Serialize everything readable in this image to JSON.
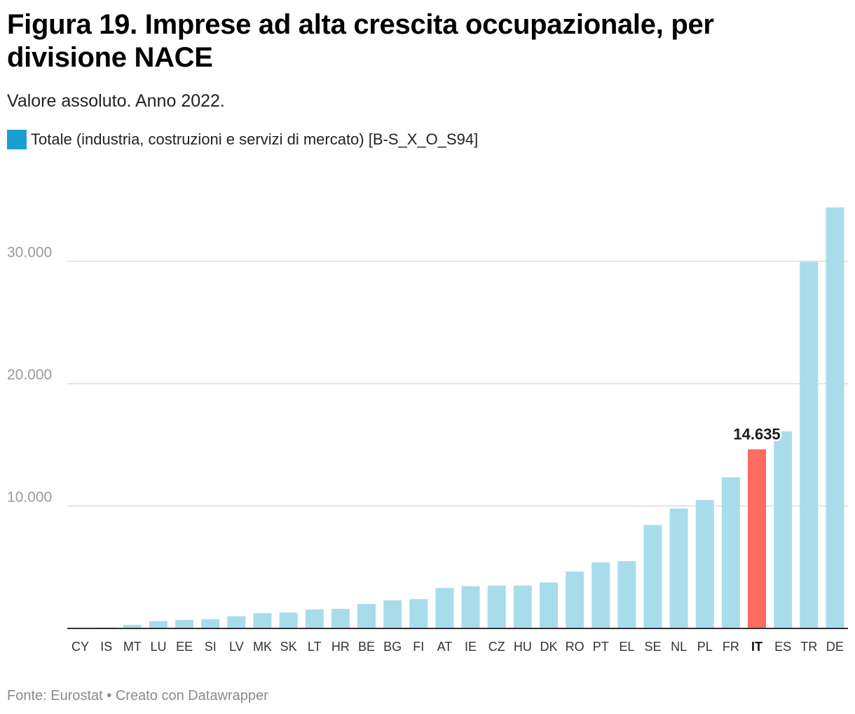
{
  "title": "Figura 19. Imprese ad alta crescita occupazionale, per divisione NACE",
  "subtitle": "Valore assoluto. Anno 2022.",
  "legend": {
    "label": "Totale (industria, costruzioni e servizi di mercato) [B-S_X_O_S94]",
    "color": "#1aa0d0"
  },
  "footer": "Fonte: Eurostat • Creato con Datawrapper",
  "colors": {
    "bar": "#a9dceb",
    "highlight": "#ff6b61",
    "grid": "#dddddd",
    "axis": "#333333"
  },
  "chart_data": {
    "type": "bar",
    "title": "Figura 19. Imprese ad alta crescita occupazionale, per divisione NACE",
    "xlabel": "",
    "ylabel": "",
    "ylim": [
      0,
      34500
    ],
    "yticks": [
      10000,
      20000,
      30000
    ],
    "ytick_labels": [
      "10.000",
      "20.000",
      "30.000"
    ],
    "grid": true,
    "categories": [
      "CY",
      "IS",
      "MT",
      "LU",
      "EE",
      "SI",
      "LV",
      "MK",
      "SK",
      "LT",
      "HR",
      "BE",
      "BG",
      "FI",
      "AT",
      "IE",
      "CZ",
      "HU",
      "DK",
      "RO",
      "PT",
      "EL",
      "SE",
      "NL",
      "PL",
      "FR",
      "IT",
      "ES",
      "TR",
      "DE"
    ],
    "values": [
      30,
      80,
      300,
      600,
      700,
      750,
      1000,
      1250,
      1300,
      1550,
      1600,
      2000,
      2300,
      2400,
      3300,
      3450,
      3500,
      3500,
      3750,
      4650,
      5400,
      5500,
      8450,
      9800,
      10500,
      12350,
      14635,
      16100,
      29950,
      34400
    ],
    "highlight": "IT",
    "annotation": {
      "category": "IT",
      "text": "14.635"
    }
  }
}
